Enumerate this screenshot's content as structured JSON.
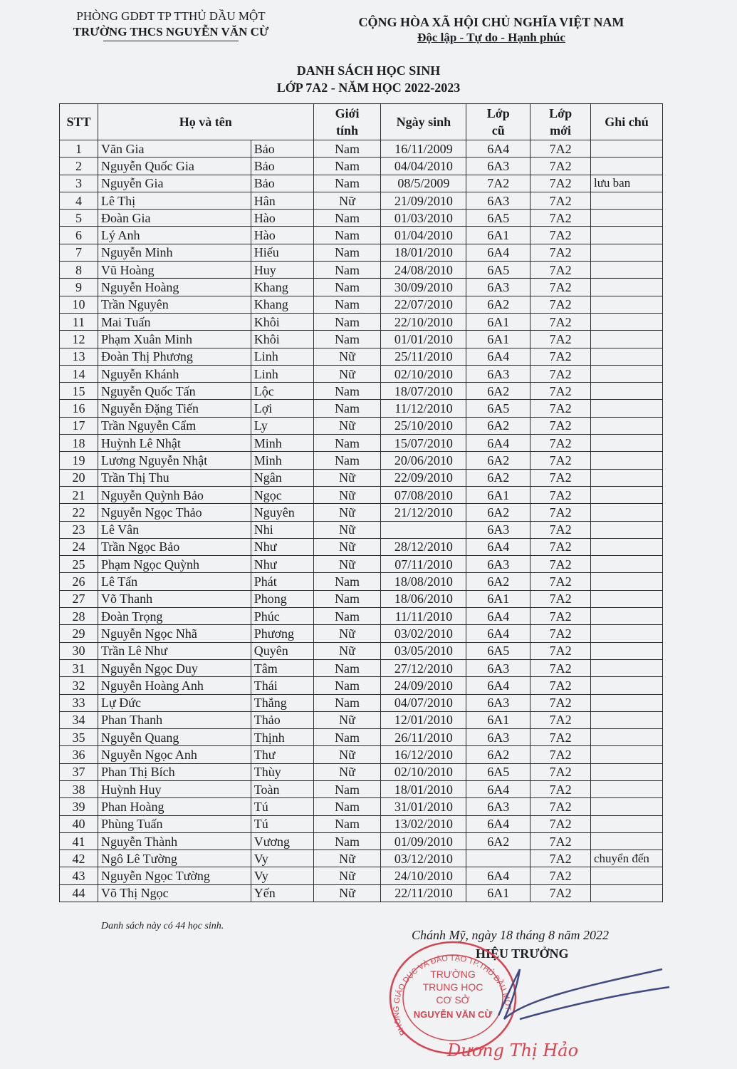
{
  "header": {
    "dept": "PHÒNG GDĐT TP TTHỦ DẦU MỘT",
    "school": "TRƯỜNG THCS NGUYỄN VĂN CỪ",
    "nation": "CỘNG HÒA XÃ HỘI CHỦ  NGHĨA VIỆT NAM",
    "motto": "Độc lập - Tự do - Hạnh phúc"
  },
  "title": {
    "line1": "DANH SÁCH HỌC SINH",
    "line2": "LỚP 7A2 - NĂM HỌC 2022-2023"
  },
  "table": {
    "columns": {
      "stt": "STT",
      "name": "Họ và tên",
      "gender_1": "Giới",
      "gender_2": "tính",
      "dob": "Ngày sinh",
      "old_1": "Lớp",
      "old_2": "cũ",
      "new_1": "Lớp",
      "new_2": "mới",
      "note": "Ghi chú"
    },
    "rows": [
      [
        "1",
        "Văn Gia",
        "Bảo",
        "Nam",
        "16/11/2009",
        "6A4",
        "7A2",
        ""
      ],
      [
        "2",
        "Nguyễn Quốc Gia",
        "Bảo",
        "Nam",
        "04/04/2010",
        "6A3",
        "7A2",
        ""
      ],
      [
        "3",
        "Nguyễn Gia",
        "Bảo",
        "Nam",
        "08/5/2009",
        "7A2",
        "7A2",
        "lưu ban"
      ],
      [
        "4",
        "Lê Thị",
        "Hân",
        "Nữ",
        "21/09/2010",
        "6A3",
        "7A2",
        ""
      ],
      [
        "5",
        "Đoàn Gia",
        "Hào",
        "Nam",
        "01/03/2010",
        "6A5",
        "7A2",
        ""
      ],
      [
        "6",
        "Lý Anh",
        "Hào",
        "Nam",
        "01/04/2010",
        "6A1",
        "7A2",
        ""
      ],
      [
        "7",
        "Nguyễn Minh",
        "Hiếu",
        "Nam",
        "18/01/2010",
        "6A4",
        "7A2",
        ""
      ],
      [
        "8",
        "Vũ Hoàng",
        "Huy",
        "Nam",
        "24/08/2010",
        "6A5",
        "7A2",
        ""
      ],
      [
        "9",
        "Nguyễn Hoàng",
        "Khang",
        "Nam",
        "30/09/2010",
        "6A3",
        "7A2",
        ""
      ],
      [
        "10",
        "Trần Nguyên",
        "Khang",
        "Nam",
        "22/07/2010",
        "6A2",
        "7A2",
        ""
      ],
      [
        "11",
        "Mai Tuấn",
        "Khôi",
        "Nam",
        "22/10/2010",
        "6A1",
        "7A2",
        ""
      ],
      [
        "12",
        "Phạm Xuân Minh",
        "Khôi",
        "Nam",
        "01/01/2010",
        "6A1",
        "7A2",
        ""
      ],
      [
        "13",
        "Đoàn Thị Phương",
        "Linh",
        "Nữ",
        "25/11/2010",
        "6A4",
        "7A2",
        ""
      ],
      [
        "14",
        "Nguyễn Khánh",
        "Linh",
        "Nữ",
        "02/10/2010",
        "6A3",
        "7A2",
        ""
      ],
      [
        "15",
        "Nguyễn Quốc Tấn",
        "Lộc",
        "Nam",
        "18/07/2010",
        "6A2",
        "7A2",
        ""
      ],
      [
        "16",
        "Nguyễn Đặng Tiến",
        "Lợi",
        "Nam",
        "11/12/2010",
        "6A5",
        "7A2",
        ""
      ],
      [
        "17",
        "Trần Nguyễn Cẩm",
        "Ly",
        "Nữ",
        "25/10/2010",
        "6A2",
        "7A2",
        ""
      ],
      [
        "18",
        "Huỳnh Lê Nhật",
        "Minh",
        "Nam",
        "15/07/2010",
        "6A4",
        "7A2",
        ""
      ],
      [
        "19",
        "Lương Nguyễn Nhật",
        "Minh",
        "Nam",
        "20/06/2010",
        "6A2",
        "7A2",
        ""
      ],
      [
        "20",
        "Trần Thị Thu",
        "Ngân",
        "Nữ",
        "22/09/2010",
        "6A2",
        "7A2",
        ""
      ],
      [
        "21",
        "Nguyễn Quỳnh Bảo",
        "Ngọc",
        "Nữ",
        "07/08/2010",
        "6A1",
        "7A2",
        ""
      ],
      [
        "22",
        "Nguyễn Ngọc Thảo",
        "Nguyên",
        "Nữ",
        "21/12/2010",
        "6A2",
        "7A2",
        ""
      ],
      [
        "23",
        "Lê Vân",
        "Nhi",
        "Nữ",
        "",
        "6A3",
        "7A2",
        ""
      ],
      [
        "24",
        "Trần Ngọc Bảo",
        "Như",
        "Nữ",
        "28/12/2010",
        "6A4",
        "7A2",
        ""
      ],
      [
        "25",
        "Phạm Ngọc Quỳnh",
        "Như",
        "Nữ",
        "07/11/2010",
        "6A3",
        "7A2",
        ""
      ],
      [
        "26",
        "Lê Tấn",
        "Phát",
        "Nam",
        "18/08/2010",
        "6A2",
        "7A2",
        ""
      ],
      [
        "27",
        "Võ Thanh",
        "Phong",
        "Nam",
        "18/06/2010",
        "6A1",
        "7A2",
        ""
      ],
      [
        "28",
        "Đoàn Trọng",
        "Phúc",
        "Nam",
        "11/11/2010",
        "6A4",
        "7A2",
        ""
      ],
      [
        "29",
        "Nguyễn Ngọc Nhã",
        "Phương",
        "Nữ",
        "03/02/2010",
        "6A4",
        "7A2",
        ""
      ],
      [
        "30",
        "Trần Lê Như",
        "Quyên",
        "Nữ",
        "03/05/2010",
        "6A5",
        "7A2",
        ""
      ],
      [
        "31",
        "Nguyễn Ngọc Duy",
        "Tâm",
        "Nam",
        "27/12/2010",
        "6A3",
        "7A2",
        ""
      ],
      [
        "32",
        "Nguyễn Hoàng Anh",
        "Thái",
        "Nam",
        "24/09/2010",
        "6A4",
        "7A2",
        ""
      ],
      [
        "33",
        "Lự Đức",
        "Thắng",
        "Nam",
        "04/07/2010",
        "6A3",
        "7A2",
        ""
      ],
      [
        "34",
        "Phan Thanh",
        "Thảo",
        "Nữ",
        "12/01/2010",
        "6A1",
        "7A2",
        ""
      ],
      [
        "35",
        "Nguyễn Quang",
        "Thịnh",
        "Nam",
        "26/11/2010",
        "6A3",
        "7A2",
        ""
      ],
      [
        "36",
        "Nguyễn Ngọc Anh",
        "Thư",
        "Nữ",
        "16/12/2010",
        "6A2",
        "7A2",
        ""
      ],
      [
        "37",
        "Phan Thị Bích",
        "Thùy",
        "Nữ",
        "02/10/2010",
        "6A5",
        "7A2",
        ""
      ],
      [
        "38",
        "Huỳnh Huy",
        "Toàn",
        "Nam",
        "18/01/2010",
        "6A4",
        "7A2",
        ""
      ],
      [
        "39",
        "Phan Hoàng",
        "Tú",
        "Nam",
        "31/01/2010",
        "6A3",
        "7A2",
        ""
      ],
      [
        "40",
        "Phùng Tuấn",
        "Tú",
        "Nam",
        "13/02/2010",
        "6A4",
        "7A2",
        ""
      ],
      [
        "41",
        "Nguyễn Thành",
        "Vương",
        "Nam",
        "01/09/2010",
        "6A2",
        "7A2",
        ""
      ],
      [
        "42",
        "Ngô Lê Tường",
        "Vy",
        "Nữ",
        "03/12/2010",
        "",
        "7A2",
        "chuyển đến"
      ],
      [
        "43",
        "Nguyễn Ngọc Tường",
        "Vy",
        "Nữ",
        "24/10/2010",
        "6A4",
        "7A2",
        ""
      ],
      [
        "44",
        "Võ Thị Ngọc",
        "Yến",
        "Nữ",
        "22/11/2010",
        "6A1",
        "7A2",
        ""
      ]
    ]
  },
  "footer": {
    "count_note": "Danh sách này có 44 học sinh.",
    "place_date": "Chánh Mỹ, ngày 18 tháng 8 năm 2022",
    "signer_title": "HIỆU TRƯỞNG",
    "signer_name": "Dương Thị Hảo",
    "stamp": {
      "ring": "PHÒNG GIÁO DỤC VÀ ĐÀO TẠO TP.THỦ DẦU MỘT",
      "line1": "TRƯỜNG",
      "line2": "TRUNG HỌC",
      "line3": "CƠ SỞ",
      "line4": "NGUYỄN VĂN CỪ"
    },
    "colors": {
      "stamp": "#d9434f",
      "signature": "#3d4a86"
    }
  }
}
